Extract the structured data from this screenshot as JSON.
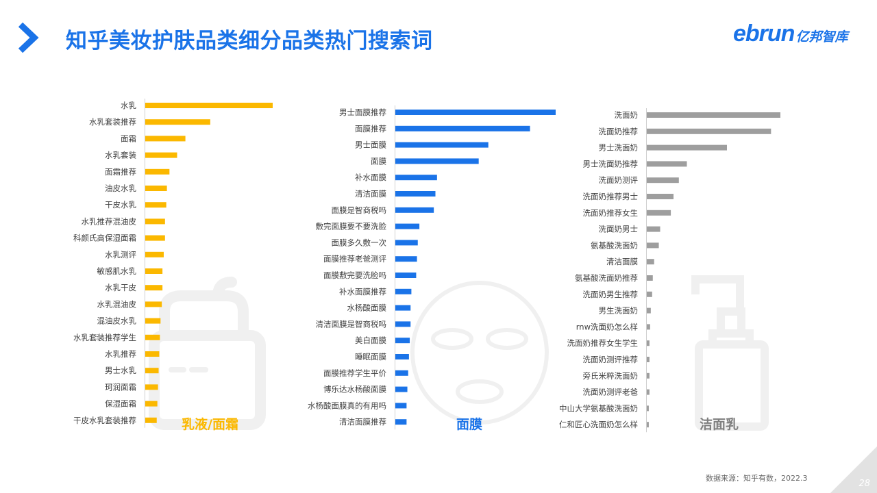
{
  "header": {
    "title": "知乎美妆护肤品类细分品类热门搜索词",
    "logo_en": "ebrun",
    "logo_zh": "亿邦智库"
  },
  "footer": {
    "source": "数据来源：知乎有数，2022.3",
    "page_number": "28"
  },
  "colors": {
    "accent": "#1a73e8",
    "series_1": "#fbb800",
    "series_2": "#1a73e8",
    "series_3": "#9e9e9e",
    "watermark": "#f0f0f0"
  },
  "icons": [
    "chevron-right-icon",
    "cream-jar-icon",
    "face-mask-icon",
    "pump-bottle-icon"
  ],
  "chart_data": [
    {
      "type": "bar",
      "orientation": "horizontal",
      "name": "乳液/面霜",
      "categories": [
        "水乳",
        "水乳套装推荐",
        "面霜",
        "水乳套装",
        "面霜推荐",
        "油皮水乳",
        "干皮水乳",
        "水乳推荐混油皮",
        "科颜氏高保湿面霜",
        "水乳测评",
        "敏感肌水乳",
        "水乳干皮",
        "水乳混油皮",
        "混油皮水乳",
        "水乳套装推荐学生",
        "水乳推荐",
        "男士水乳",
        "珂润面霜",
        "保湿面霜",
        "干皮水乳套装推荐"
      ],
      "values": [
        100,
        51,
        31.5,
        25,
        19,
        17,
        16.5,
        15.5,
        15.5,
        14.5,
        13.5,
        13.5,
        13,
        12,
        11.5,
        11,
        10.5,
        10,
        9.5,
        9
      ],
      "xlim": [
        0,
        100
      ]
    },
    {
      "type": "bar",
      "orientation": "horizontal",
      "name": "面膜",
      "categories": [
        "男士面膜推荐",
        "面膜推荐",
        "男士面膜",
        "面膜",
        "补水面膜",
        "清洁面膜",
        "面膜是智商税吗",
        "敷完面膜要不要洗脸",
        "面膜多久敷一次",
        "面膜推荐老爸测评",
        "面膜敷完要洗脸吗",
        "补水面膜推荐",
        "水杨酸面膜",
        "清洁面膜是智商税吗",
        "美白面膜",
        "睡眠面膜",
        "面膜推荐学生平价",
        "博乐达水杨酸面膜",
        "水杨酸面膜真的有用吗",
        "清洁面膜推荐"
      ],
      "values": [
        100,
        84,
        58,
        52,
        26,
        25,
        24,
        15,
        14,
        13.5,
        13,
        10,
        9.5,
        9.5,
        9,
        8.5,
        8,
        7.5,
        7,
        7
      ],
      "xlim": [
        0,
        100
      ]
    },
    {
      "type": "bar",
      "orientation": "horizontal",
      "name": "洁面乳",
      "categories": [
        "洗面奶",
        "洗面奶推荐",
        "男士洗面奶",
        "男士洗面奶推荐",
        "洗面奶测评",
        "洗面奶推荐男士",
        "洗面奶推荐女生",
        "洗面奶男士",
        "氨基酸洗面奶",
        "清洁面膜",
        "氨基酸洗面奶推荐",
        "洗面奶男生推荐",
        "男生洗面奶",
        "rnw洗面奶怎么样",
        "洗面奶推荐女生学生",
        "洗面奶测评推荐",
        "旁氏米粹洗面奶",
        "洗面奶测评老爸",
        "中山大学氨基酸洗面奶",
        "仁和匠心洗面奶怎么样"
      ],
      "values": [
        100,
        93,
        60,
        30,
        24,
        20,
        18,
        10,
        9,
        5.5,
        4.5,
        4,
        3,
        2.5,
        2,
        2,
        2,
        2,
        1.5,
        1.5
      ],
      "xlim": [
        0,
        100
      ]
    }
  ]
}
